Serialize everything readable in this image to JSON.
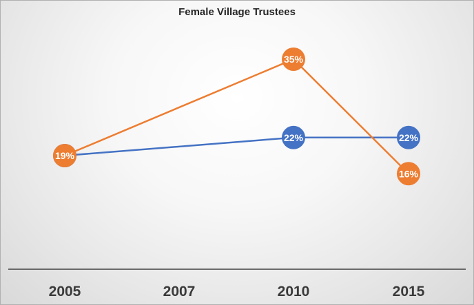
{
  "chart_data": {
    "type": "line",
    "title": "Female Village Trustees",
    "categories": [
      "2005",
      "2007",
      "2010",
      "2015"
    ],
    "x": [
      2005,
      2007,
      2010,
      2015
    ],
    "series": [
      {
        "color": "#4472c4",
        "points": [
          {
            "x": 2005,
            "y": 19,
            "label": "19%"
          },
          {
            "x": 2010,
            "y": 22,
            "label": "22%"
          },
          {
            "x": 2015,
            "y": 22,
            "label": "22%"
          }
        ]
      },
      {
        "color": "#ed7d31",
        "points": [
          {
            "x": 2005,
            "y": 19,
            "label": "19%"
          },
          {
            "x": 2010,
            "y": 35,
            "label": "35%"
          },
          {
            "x": 2015,
            "y": 16,
            "label": "16%"
          }
        ]
      }
    ],
    "ylim": [
      0,
      40
    ],
    "grid": false,
    "legend": "none"
  }
}
